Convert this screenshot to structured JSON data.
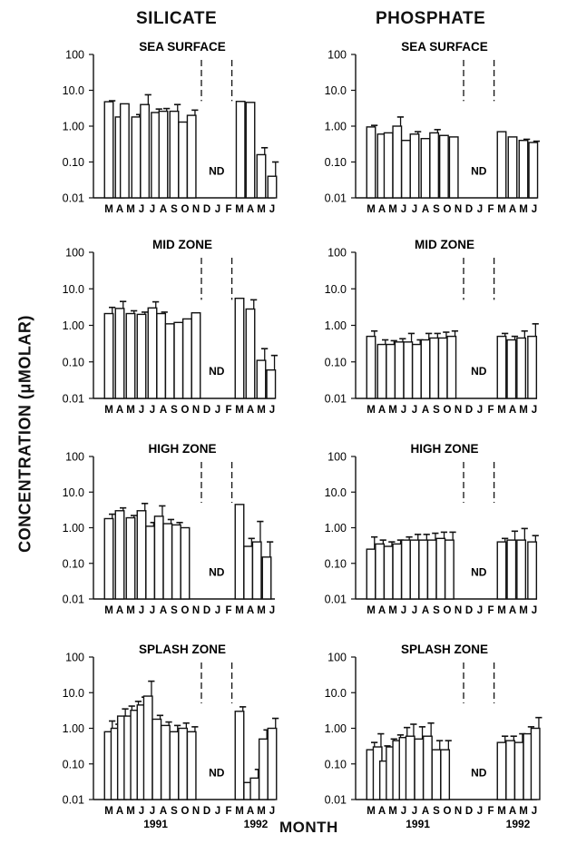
{
  "figure": {
    "col_titles": [
      "SILICATE",
      "PHOSPHATE"
    ],
    "ylabel": "CONCENTRATION (μMOLAR)",
    "xlabel": "MONTH"
  },
  "chart_data": [
    {
      "type": "bar",
      "title": "SEA SURFACE",
      "ylabel": "CONCENTRATION (μMOLAR)",
      "xlabel": "MONTH",
      "yscale": "log",
      "ylim": [
        0.01,
        100
      ],
      "yticks": [
        "100",
        "10.0",
        "1.00",
        "0.10",
        "0.01"
      ],
      "months": [
        "M",
        "A",
        "M",
        "J",
        "J",
        "A",
        "S",
        "O",
        "N",
        "D",
        "J",
        "F",
        "M",
        "A",
        "M",
        "J"
      ],
      "gap_label": "ND",
      "year_labels": [
        "",
        ""
      ],
      "bars": [
        {
          "m": 0,
          "v": 4.8,
          "e": 0.3
        },
        {
          "m": 1,
          "v": 1.8,
          "e": 0
        },
        {
          "m": 1.45,
          "v": 4.2,
          "e": 0
        },
        {
          "m": 2.5,
          "v": 1.8,
          "e": 0.3
        },
        {
          "m": 3.3,
          "v": 4.0,
          "e": 3.5
        },
        {
          "m": 4.3,
          "v": 2.4,
          "e": 0.6
        },
        {
          "m": 5,
          "v": 2.6,
          "e": 0.5
        },
        {
          "m": 6,
          "v": 2.6,
          "e": 1.4
        },
        {
          "m": 6.8,
          "v": 1.3,
          "e": 0
        },
        {
          "m": 7.6,
          "v": 2.0,
          "e": 0.8
        },
        {
          "m": 12.1,
          "v": 4.9,
          "e": 0
        },
        {
          "m": 13,
          "v": 4.6,
          "e": 0
        },
        {
          "m": 14,
          "v": 0.16,
          "e": 0.09
        },
        {
          "m": 15,
          "v": 0.04,
          "e": 0.06
        }
      ]
    },
    {
      "type": "bar",
      "title": "SEA SURFACE",
      "ylabel": "CONCENTRATION (μMOLAR)",
      "xlabel": "MONTH",
      "yscale": "log",
      "ylim": [
        0.01,
        100
      ],
      "yticks": [
        "100",
        "10.0",
        "1.00",
        "0.10",
        "0.01"
      ],
      "months": [
        "M",
        "A",
        "M",
        "J",
        "J",
        "A",
        "S",
        "O",
        "N",
        "D",
        "J",
        "F",
        "M",
        "A",
        "M",
        "J"
      ],
      "gap_label": "ND",
      "year_labels": [
        "",
        ""
      ],
      "bars": [
        {
          "m": 0,
          "v": 0.95,
          "e": 0.1
        },
        {
          "m": 1,
          "v": 0.6,
          "e": 0
        },
        {
          "m": 1.6,
          "v": 0.65,
          "e": 0
        },
        {
          "m": 2.4,
          "v": 1.0,
          "e": 0.8
        },
        {
          "m": 3.2,
          "v": 0.4,
          "e": 0
        },
        {
          "m": 4,
          "v": 0.6,
          "e": 0.1
        },
        {
          "m": 5,
          "v": 0.45,
          "e": 0
        },
        {
          "m": 5.8,
          "v": 0.65,
          "e": 0.15
        },
        {
          "m": 6.7,
          "v": 0.55,
          "e": 0
        },
        {
          "m": 7.6,
          "v": 0.5,
          "e": 0
        },
        {
          "m": 12,
          "v": 0.7,
          "e": 0
        },
        {
          "m": 13,
          "v": 0.5,
          "e": 0
        },
        {
          "m": 14,
          "v": 0.4,
          "e": 0.03
        },
        {
          "m": 14.9,
          "v": 0.35,
          "e": 0.03
        }
      ]
    },
    {
      "type": "bar",
      "title": "MID ZONE",
      "ylabel": "CONCENTRATION (μMOLAR)",
      "xlabel": "MONTH",
      "yscale": "log",
      "ylim": [
        0.01,
        100
      ],
      "yticks": [
        "100",
        "10.0",
        "1.00",
        "0.10",
        "0.01"
      ],
      "months": [
        "M",
        "A",
        "M",
        "J",
        "J",
        "A",
        "S",
        "O",
        "N",
        "D",
        "J",
        "F",
        "M",
        "A",
        "M",
        "J"
      ],
      "gap_label": "ND",
      "year_labels": [
        "",
        ""
      ],
      "bars": [
        {
          "m": 0,
          "v": 2.1,
          "e": 1.0
        },
        {
          "m": 1,
          "v": 2.9,
          "e": 1.6
        },
        {
          "m": 2,
          "v": 2.1,
          "e": 0.4
        },
        {
          "m": 3,
          "v": 2.0,
          "e": 0.3
        },
        {
          "m": 4,
          "v": 3.0,
          "e": 1.4
        },
        {
          "m": 4.8,
          "v": 2.1,
          "e": 0.2
        },
        {
          "m": 5.6,
          "v": 1.1,
          "e": 0
        },
        {
          "m": 6.4,
          "v": 1.2,
          "e": 0
        },
        {
          "m": 7.2,
          "v": 1.5,
          "e": 0
        },
        {
          "m": 8,
          "v": 2.2,
          "e": 0
        },
        {
          "m": 12,
          "v": 5.5,
          "e": 0
        },
        {
          "m": 13,
          "v": 2.8,
          "e": 2.2
        },
        {
          "m": 14,
          "v": 0.11,
          "e": 0.12
        },
        {
          "m": 14.9,
          "v": 0.06,
          "e": 0.09
        }
      ]
    },
    {
      "type": "bar",
      "title": "MID ZONE",
      "ylabel": "CONCENTRATION (μMOLAR)",
      "xlabel": "MONTH",
      "yscale": "log",
      "ylim": [
        0.01,
        100
      ],
      "yticks": [
        "100",
        "10.0",
        "1.00",
        "0.10",
        "0.01"
      ],
      "months": [
        "M",
        "A",
        "M",
        "J",
        "J",
        "A",
        "S",
        "O",
        "N",
        "D",
        "J",
        "F",
        "M",
        "A",
        "M",
        "J"
      ],
      "gap_label": "ND",
      "year_labels": [
        "",
        ""
      ],
      "bars": [
        {
          "m": 0,
          "v": 0.5,
          "e": 0.2
        },
        {
          "m": 1,
          "v": 0.3,
          "e": 0.1
        },
        {
          "m": 1.8,
          "v": 0.3,
          "e": 0.08
        },
        {
          "m": 2.6,
          "v": 0.35,
          "e": 0.08
        },
        {
          "m": 3.4,
          "v": 0.35,
          "e": 0.25
        },
        {
          "m": 4.2,
          "v": 0.3,
          "e": 0.1
        },
        {
          "m": 5,
          "v": 0.4,
          "e": 0.2
        },
        {
          "m": 5.8,
          "v": 0.45,
          "e": 0.15
        },
        {
          "m": 6.6,
          "v": 0.45,
          "e": 0.2
        },
        {
          "m": 7.4,
          "v": 0.5,
          "e": 0.2
        },
        {
          "m": 12,
          "v": 0.5,
          "e": 0.1
        },
        {
          "m": 12.9,
          "v": 0.4,
          "e": 0.1
        },
        {
          "m": 13.8,
          "v": 0.45,
          "e": 0.25
        },
        {
          "m": 14.8,
          "v": 0.5,
          "e": 0.6
        }
      ]
    },
    {
      "type": "bar",
      "title": "HIGH ZONE",
      "ylabel": "CONCENTRATION (μMOLAR)",
      "xlabel": "MONTH",
      "yscale": "log",
      "ylim": [
        0.01,
        100
      ],
      "yticks": [
        "100",
        "10.0",
        "1.00",
        "0.10",
        "0.01"
      ],
      "months": [
        "M",
        "A",
        "M",
        "J",
        "J",
        "A",
        "S",
        "O",
        "N",
        "D",
        "J",
        "F",
        "M",
        "A",
        "M",
        "J"
      ],
      "gap_label": "ND",
      "year_labels": [
        "",
        ""
      ],
      "bars": [
        {
          "m": 0,
          "v": 1.8,
          "e": 0.6
        },
        {
          "m": 1,
          "v": 3.0,
          "e": 0.6
        },
        {
          "m": 2,
          "v": 1.9,
          "e": 0.3
        },
        {
          "m": 3,
          "v": 3.0,
          "e": 1.8
        },
        {
          "m": 3.8,
          "v": 1.1,
          "e": 0.3
        },
        {
          "m": 4.6,
          "v": 2.1,
          "e": 2.0
        },
        {
          "m": 5.4,
          "v": 1.3,
          "e": 0.4
        },
        {
          "m": 6.2,
          "v": 1.2,
          "e": 0.2
        },
        {
          "m": 7,
          "v": 1.0,
          "e": 0
        },
        {
          "m": 12,
          "v": 4.5,
          "e": 0
        },
        {
          "m": 12.8,
          "v": 0.3,
          "e": 0.2
        },
        {
          "m": 13.6,
          "v": 0.4,
          "e": 1.1
        },
        {
          "m": 14.5,
          "v": 0.15,
          "e": 0.25
        }
      ]
    },
    {
      "type": "bar",
      "title": "HIGH ZONE",
      "ylabel": "CONCENTRATION (μMOLAR)",
      "xlabel": "MONTH",
      "yscale": "log",
      "ylim": [
        0.01,
        100
      ],
      "yticks": [
        "100",
        "10.0",
        "1.00",
        "0.10",
        "0.01"
      ],
      "months": [
        "M",
        "A",
        "M",
        "J",
        "J",
        "A",
        "S",
        "O",
        "N",
        "D",
        "J",
        "F",
        "M",
        "A",
        "M",
        "J"
      ],
      "gap_label": "ND",
      "year_labels": [
        "",
        ""
      ],
      "bars": [
        {
          "m": 0,
          "v": 0.25,
          "e": 0.3
        },
        {
          "m": 0.8,
          "v": 0.35,
          "e": 0.1
        },
        {
          "m": 1.6,
          "v": 0.3,
          "e": 0.1
        },
        {
          "m": 2.4,
          "v": 0.35,
          "e": 0.1
        },
        {
          "m": 3.2,
          "v": 0.45,
          "e": 0.1
        },
        {
          "m": 4,
          "v": 0.45,
          "e": 0.2
        },
        {
          "m": 4.8,
          "v": 0.45,
          "e": 0.2
        },
        {
          "m": 5.6,
          "v": 0.45,
          "e": 0.25
        },
        {
          "m": 6.4,
          "v": 0.5,
          "e": 0.25
        },
        {
          "m": 7.2,
          "v": 0.45,
          "e": 0.3
        },
        {
          "m": 12,
          "v": 0.4,
          "e": 0.1
        },
        {
          "m": 12.9,
          "v": 0.45,
          "e": 0.35
        },
        {
          "m": 13.8,
          "v": 0.45,
          "e": 0.5
        },
        {
          "m": 14.8,
          "v": 0.4,
          "e": 0.2
        }
      ]
    },
    {
      "type": "bar",
      "title": "SPLASH ZONE",
      "ylabel": "CONCENTRATION (μMOLAR)",
      "xlabel": "MONTH",
      "yscale": "log",
      "ylim": [
        0.01,
        100
      ],
      "yticks": [
        "100",
        "10.0",
        "1.00",
        "0.10",
        "0.01"
      ],
      "months": [
        "M",
        "A",
        "M",
        "J",
        "J",
        "A",
        "S",
        "O",
        "N",
        "D",
        "J",
        "F",
        "M",
        "A",
        "M",
        "J"
      ],
      "gap_label": "ND",
      "year_labels": [
        "1991",
        "1992"
      ],
      "bars": [
        {
          "m": 0,
          "v": 0.8,
          "e": 0.8
        },
        {
          "m": 0.6,
          "v": 1.0,
          "e": 0.3
        },
        {
          "m": 1.2,
          "v": 2.2,
          "e": 1.3
        },
        {
          "m": 1.8,
          "v": 2.2,
          "e": 2.0
        },
        {
          "m": 2.4,
          "v": 3.2,
          "e": 2.5
        },
        {
          "m": 3,
          "v": 4.5,
          "e": 3.0
        },
        {
          "m": 3.6,
          "v": 8.0,
          "e": 13.0
        },
        {
          "m": 4.4,
          "v": 1.8,
          "e": 0.5
        },
        {
          "m": 5.2,
          "v": 1.2,
          "e": 0.3
        },
        {
          "m": 6,
          "v": 0.8,
          "e": 0.4
        },
        {
          "m": 6.8,
          "v": 1.0,
          "e": 0.4
        },
        {
          "m": 7.6,
          "v": 0.8,
          "e": 0.3
        },
        {
          "m": 12,
          "v": 3.0,
          "e": 1.0
        },
        {
          "m": 12.8,
          "v": 0.03,
          "e": 0
        },
        {
          "m": 13.4,
          "v": 0.04,
          "e": 0.03
        },
        {
          "m": 14.2,
          "v": 0.5,
          "e": 0.4
        },
        {
          "m": 15,
          "v": 1.0,
          "e": 0.9
        }
      ]
    },
    {
      "type": "bar",
      "title": "SPLASH ZONE",
      "ylabel": "CONCENTRATION (μMOLAR)",
      "xlabel": "MONTH",
      "yscale": "log",
      "ylim": [
        0.01,
        100
      ],
      "yticks": [
        "100",
        "10.0",
        "1.00",
        "0.10",
        "0.01"
      ],
      "months": [
        "M",
        "A",
        "M",
        "J",
        "J",
        "A",
        "S",
        "O",
        "N",
        "D",
        "J",
        "F",
        "M",
        "A",
        "M",
        "J"
      ],
      "gap_label": "ND",
      "year_labels": [
        "1991",
        "1992"
      ],
      "bars": [
        {
          "m": 0,
          "v": 0.25,
          "e": 0.15
        },
        {
          "m": 0.6,
          "v": 0.3,
          "e": 0.4
        },
        {
          "m": 1.2,
          "v": 0.12,
          "e": 0.2
        },
        {
          "m": 1.8,
          "v": 0.3,
          "e": 0.2
        },
        {
          "m": 2.4,
          "v": 0.45,
          "e": 0.2
        },
        {
          "m": 3,
          "v": 0.55,
          "e": 0.5
        },
        {
          "m": 3.6,
          "v": 0.6,
          "e": 0.7
        },
        {
          "m": 4.4,
          "v": 0.5,
          "e": 0.6
        },
        {
          "m": 5.2,
          "v": 0.6,
          "e": 0.8
        },
        {
          "m": 6,
          "v": 0.25,
          "e": 0.2
        },
        {
          "m": 6.8,
          "v": 0.25,
          "e": 0.2
        },
        {
          "m": 12,
          "v": 0.4,
          "e": 0.2
        },
        {
          "m": 12.8,
          "v": 0.45,
          "e": 0.15
        },
        {
          "m": 13.6,
          "v": 0.4,
          "e": 0.3
        },
        {
          "m": 14.4,
          "v": 0.7,
          "e": 0.4
        },
        {
          "m": 15.1,
          "v": 1.0,
          "e": 1.0
        }
      ]
    }
  ]
}
